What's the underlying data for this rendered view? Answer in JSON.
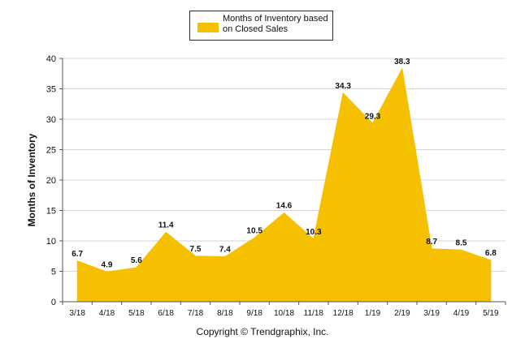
{
  "legend": {
    "label": "Months of Inventory based on Closed Sales",
    "color": "#f5c000"
  },
  "footer": {
    "copyright": "Copyright © Trendgraphix, Inc."
  },
  "chart_data": {
    "type": "area",
    "title": "",
    "xlabel": "",
    "ylabel": "Months of Inventory",
    "ylim": [
      0,
      40
    ],
    "yticks": [
      0,
      5,
      10,
      15,
      20,
      25,
      30,
      35,
      40
    ],
    "grid": true,
    "legend_position": "top-center",
    "categories": [
      "3/18",
      "4/18",
      "5/18",
      "6/18",
      "7/18",
      "8/18",
      "9/18",
      "10/18",
      "11/18",
      "12/18",
      "1/19",
      "2/19",
      "3/19",
      "4/19",
      "5/19"
    ],
    "series": [
      {
        "name": "Months of Inventory based on Closed Sales",
        "color": "#f5c000",
        "values": [
          6.7,
          4.9,
          5.6,
          11.4,
          7.5,
          7.4,
          10.5,
          14.6,
          10.3,
          34.3,
          29.3,
          38.3,
          8.7,
          8.5,
          6.8
        ]
      }
    ]
  }
}
